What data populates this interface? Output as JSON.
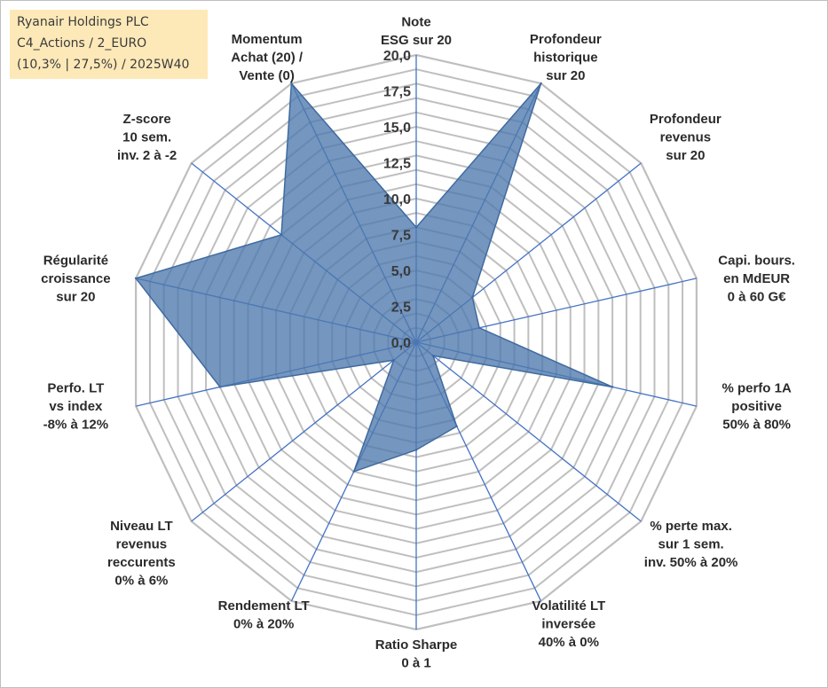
{
  "chart_data": {
    "type": "radar",
    "title_lines": [
      "Ryanair Holdings PLC",
      "C4_Actions / 2_EURO",
      "(10,3% | 27,5%) / 2025W40"
    ],
    "rlim": [
      0,
      20
    ],
    "rticks": [
      "0,0",
      "2,5",
      "5,0",
      "7,5",
      "10,0",
      "12,5",
      "15,0",
      "17,5",
      "20,0"
    ],
    "axes": [
      {
        "label": [
          "Note",
          "ESG sur 20"
        ],
        "value": 8
      },
      {
        "label": [
          "Profondeur",
          "historique",
          "sur 20"
        ],
        "value": 20
      },
      {
        "label": [
          "Profondeur",
          "revenus",
          "sur 20"
        ],
        "value": 5
      },
      {
        "label": [
          "Capi. bours.",
          "en MdEUR",
          "0 à 60 G€"
        ],
        "value": 4.5
      },
      {
        "label": [
          "% perfo 1A",
          "positive",
          "50% à 80%"
        ],
        "value": 14
      },
      {
        "label": [
          "% perte max.",
          "sur 1 sem.",
          "inv. 50% à 20%"
        ],
        "value": 1.5
      },
      {
        "label": [
          "Volatilité LT",
          "inversée",
          "40% à 0%"
        ],
        "value": 6.5
      },
      {
        "label": [
          "Ratio Sharpe",
          "0 à 1"
        ],
        "value": 7.5
      },
      {
        "label": [
          "Rendement LT",
          "0% à 20%"
        ],
        "value": 10
      },
      {
        "label": [
          "Niveau LT",
          "revenus",
          "reccurents",
          "0% à 6%"
        ],
        "value": 2
      },
      {
        "label": [
          "Perfo. LT",
          "vs index",
          "-8% à 12%"
        ],
        "value": 14
      },
      {
        "label": [
          "Régularité",
          "croissance",
          "sur 20"
        ],
        "value": 20
      },
      {
        "label": [
          "Z-score",
          "10 sem.",
          "inv. 2 à -2"
        ],
        "value": 12
      },
      {
        "label": [
          "Momentum",
          "Achat (20) /",
          "Vente (0)"
        ],
        "value": 20
      }
    ],
    "colors": {
      "fill": "#4d78ad",
      "stroke": "#3f6aa0",
      "grid": "#bfbfbf",
      "spoke": "#4472c4",
      "text": "#2b2b2b"
    },
    "grid": true,
    "legend": "none"
  }
}
